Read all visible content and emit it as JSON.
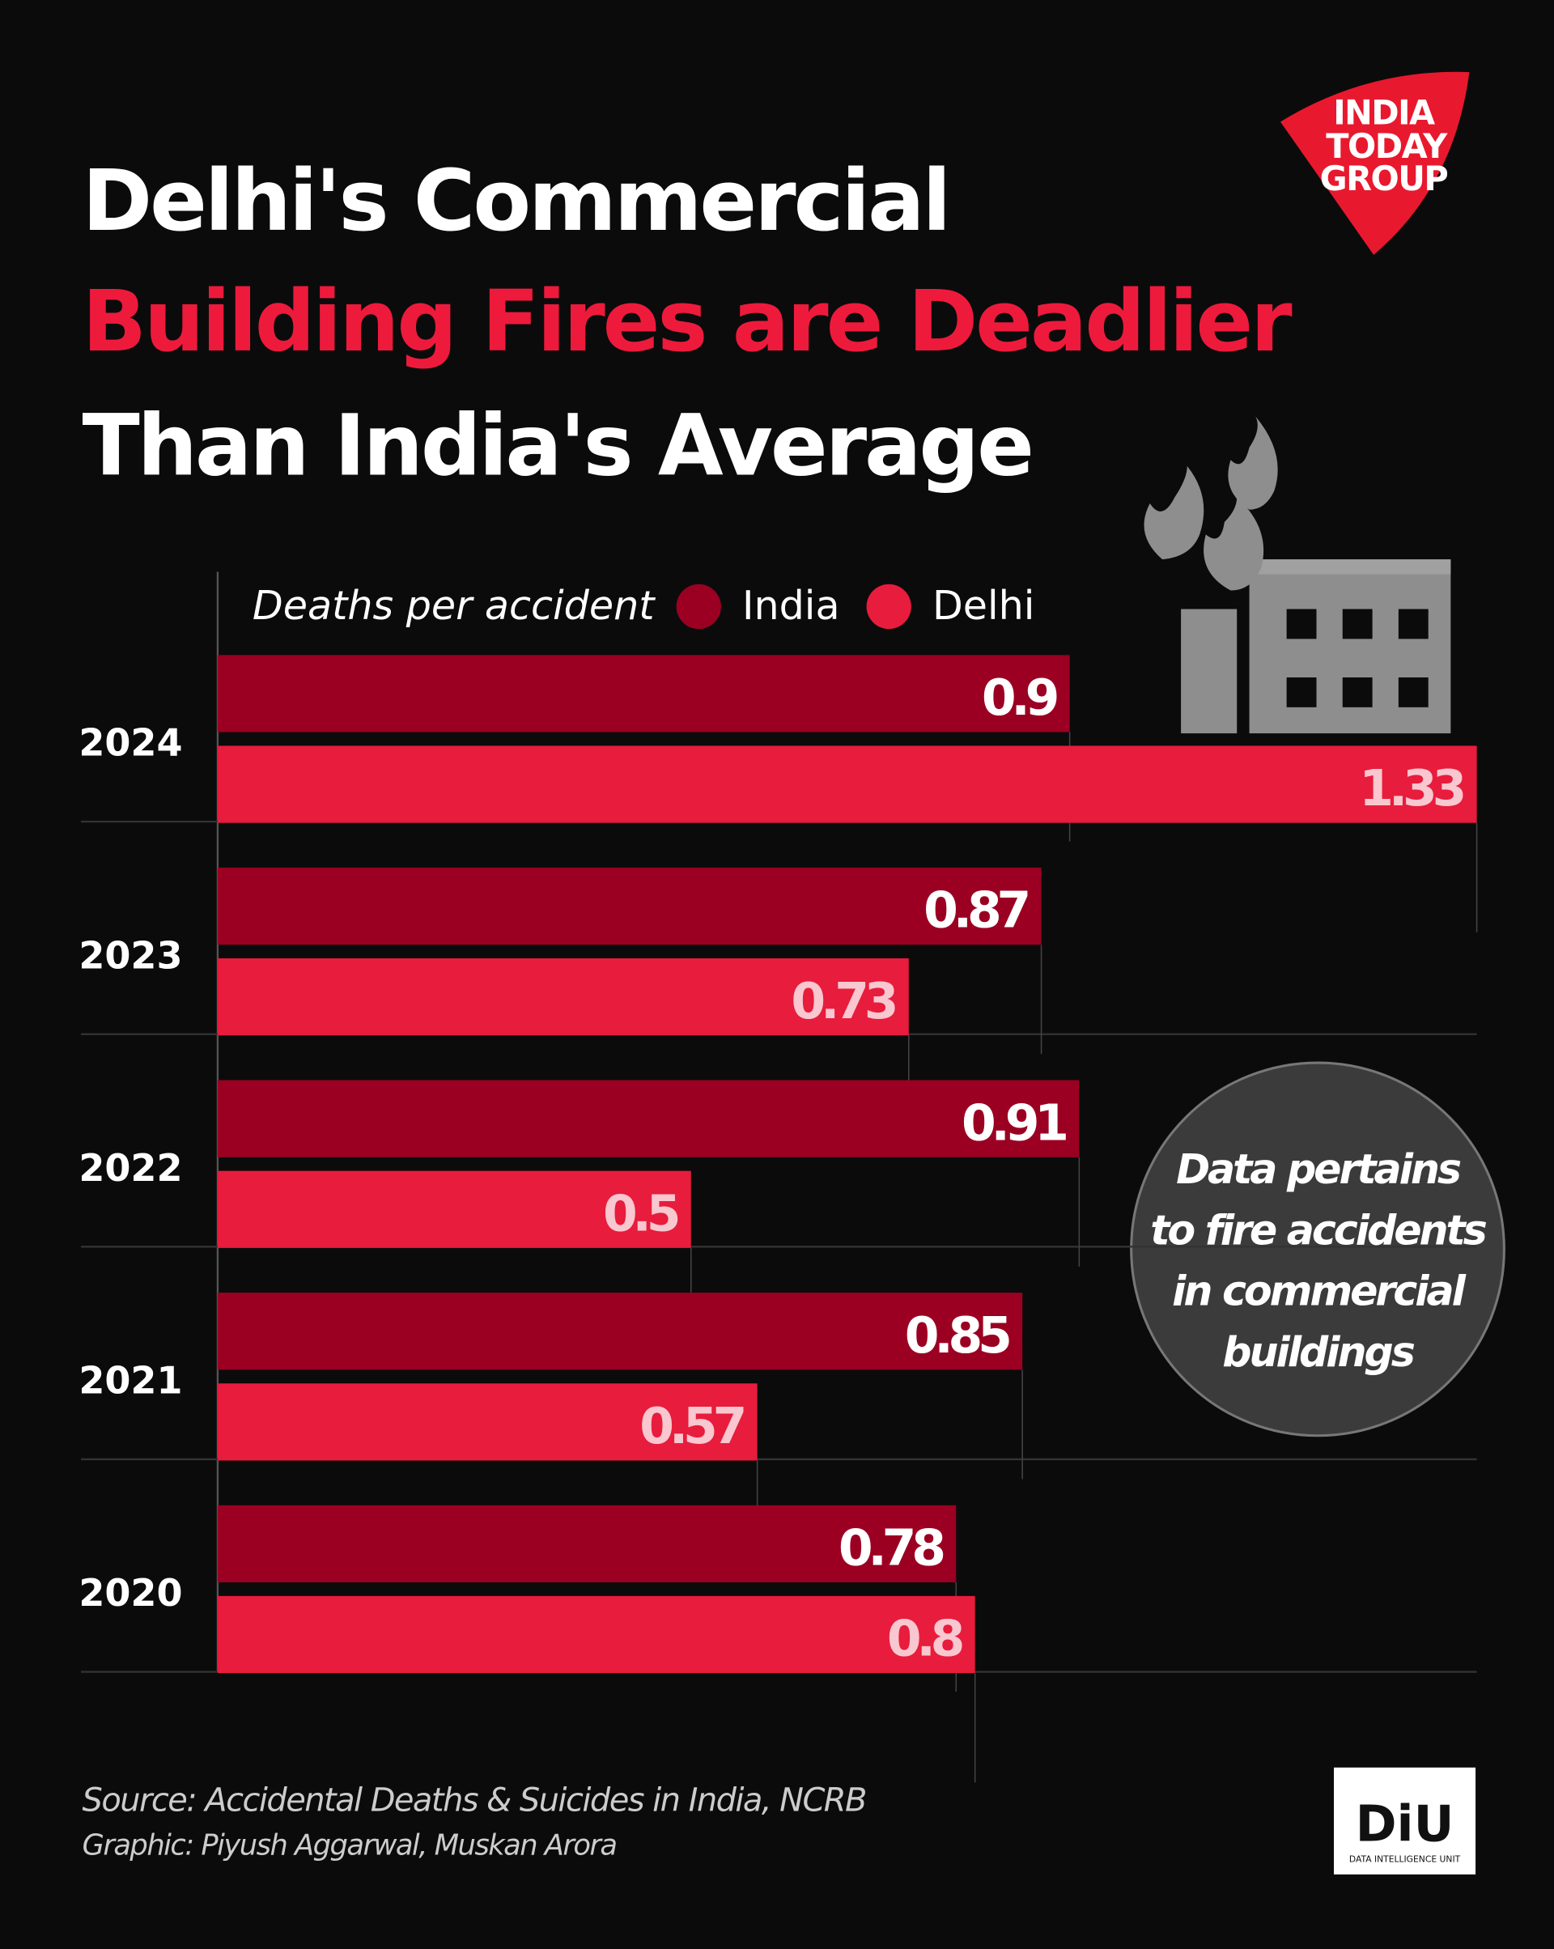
{
  "header": {
    "title_lines": [
      "Delhi's Commercial",
      "Building Fires are Deadlier",
      "Than India's Average"
    ],
    "logo": [
      "INDIA",
      "TODAY",
      "GROUP"
    ]
  },
  "chart_data": {
    "type": "bar",
    "orientation": "horizontal",
    "legend_title": "Deaths per accident",
    "categories": [
      "2024",
      "2023",
      "2022",
      "2021",
      "2020"
    ],
    "series": [
      {
        "name": "India",
        "color": "#9b0022",
        "values": [
          0.9,
          0.87,
          0.91,
          0.85,
          0.78
        ]
      },
      {
        "name": "Delhi",
        "color": "#e81c3c",
        "values": [
          1.33,
          0.73,
          0.5,
          0.57,
          0.8
        ]
      }
    ],
    "xlim": [
      0,
      1.33
    ]
  },
  "note": [
    "Data pertains",
    "to fire accidents",
    "in commercial",
    "buildings"
  ],
  "footer": {
    "source": "Source: Accidental Deaths & Suicides in India, NCRB",
    "graphic": "Graphic: Piyush Aggarwal, Muskan Arora",
    "badge": "DiU",
    "badge_subtitle": "DATA INTELLIGENCE UNIT"
  }
}
